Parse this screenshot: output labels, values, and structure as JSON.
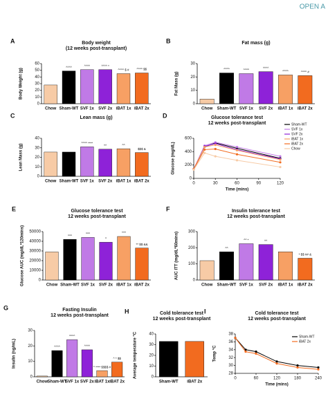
{
  "header": {
    "brand": "OPEN A"
  },
  "chart_data": [
    {
      "type": "bar",
      "label": "A",
      "title": "Body weight",
      "subtitle": "(12 weeks post-transplant)",
      "y_label": "Body Weight (g)",
      "categories": [
        "Chow",
        "Sham-WT",
        "SVF 1x",
        "SVF 2x",
        "iBAT 1x",
        "iBAT 2x"
      ],
      "values": [
        28,
        49,
        51,
        51,
        45,
        46
      ],
      "colors": [
        "#f7cba6",
        "#000000",
        "#c07ae6",
        "#8e22d8",
        "#f7a064",
        "#f26b1f"
      ],
      "annotations": [
        null,
        "^^^^",
        "^^^^",
        "^^^^ *",
        "^^^^ $ #",
        "^^^^ $$"
      ],
      "ylim": [
        0,
        60
      ],
      "yticks": [
        0,
        10,
        20,
        30,
        40,
        50,
        60
      ]
    },
    {
      "type": "bar",
      "label": "B",
      "title": "Fat mass (g)",
      "y_label": "Fat Mass (g)",
      "categories": [
        "Chow",
        "Sham-WT",
        "SVF 1x",
        "SVF 2x",
        "iBAT 1x",
        "iBAT 2x"
      ],
      "values": [
        3.5,
        23,
        22.5,
        24,
        21.5,
        21
      ],
      "colors": [
        "#f7cba6",
        "#000000",
        "#c07ae6",
        "#8e22d8",
        "#f7a064",
        "#f26b1f"
      ],
      "annotations": [
        null,
        "^^^^",
        "^^^^",
        "^^^^",
        "^^^^",
        "^^^^ #"
      ],
      "ylim": [
        0,
        30
      ],
      "yticks": [
        0,
        10,
        20,
        30
      ]
    },
    {
      "type": "bar",
      "label": "C",
      "title": "Lean mass (g)",
      "y_label": "Lean Mass (g)",
      "categories": [
        "Chow",
        "Sham-WT",
        "SVF 1x",
        "SVF 2x",
        "iBAT 1x",
        "iBAT 2x"
      ],
      "values": [
        25.5,
        25.5,
        31,
        28.5,
        29,
        25
      ],
      "colors": [
        "#f7cba6",
        "#000000",
        "#c07ae6",
        "#8e22d8",
        "#f7a064",
        "#f26b1f"
      ],
      "annotations": [
        null,
        null,
        "^^^^ ****",
        "^^",
        "^^",
        "$$$ &"
      ],
      "ylim": [
        0,
        40
      ],
      "yticks": [
        0,
        10,
        20,
        30,
        40
      ]
    },
    {
      "type": "line",
      "label": "D",
      "title": "Glucose tolerance test",
      "subtitle": "12 weeks post-transplant",
      "y_label": "Glucose (mg/dL)",
      "x_label": "Time (mins)",
      "x": [
        0,
        15,
        30,
        60,
        120
      ],
      "series": [
        {
          "name": "Sham-WT",
          "color": "#000000",
          "values": [
            140,
            470,
            530,
            450,
            300
          ]
        },
        {
          "name": "SVF 1x",
          "color": "#c07ae6",
          "values": [
            140,
            490,
            540,
            470,
            330
          ]
        },
        {
          "name": "SVF 2x",
          "color": "#8e22d8",
          "values": [
            140,
            480,
            520,
            430,
            290
          ]
        },
        {
          "name": "iBAT 1x",
          "color": "#f7a064",
          "values": [
            140,
            470,
            500,
            420,
            280
          ]
        },
        {
          "name": "iBAT 2x",
          "color": "#f26b1f",
          "values": [
            140,
            430,
            440,
            360,
            240
          ]
        },
        {
          "name": "Chow",
          "color": "#f7cba6",
          "values": [
            130,
            380,
            330,
            270,
            170
          ]
        }
      ],
      "xlim": [
        0,
        120
      ],
      "xticks": [
        0,
        30,
        60,
        90,
        120
      ],
      "ylim": [
        0,
        600
      ],
      "yticks": [
        0,
        200,
        400,
        600
      ]
    },
    {
      "type": "bar",
      "label": "E",
      "title": "Glucose tolerance test",
      "subtitle": "12 weeks post-transplant",
      "y_label": "Glucose AUC (mg/dL*120mins)",
      "categories": [
        "Chow",
        "Sham-WT",
        "SVF 1x",
        "SVF 2x",
        "iBAT 1x",
        "iBAT 2x"
      ],
      "values": [
        29000,
        42000,
        44000,
        39000,
        45000,
        33000
      ],
      "colors": [
        "#f7cba6",
        "#000000",
        "#c07ae6",
        "#8e22d8",
        "#f7a064",
        "#f26b1f"
      ],
      "annotations": [
        null,
        "^^^",
        "^^^",
        "^",
        "^^^",
        "** $$ &&"
      ],
      "ylim": [
        0,
        50000
      ],
      "yticks": [
        0,
        10000,
        20000,
        30000,
        40000,
        50000
      ]
    },
    {
      "type": "bar",
      "label": "F",
      "title": "Insulin tolerance test",
      "subtitle": "12 weeks post-transplant",
      "y_label": "AUC ITT (mg/dL*60mins)",
      "categories": [
        "Chow",
        "Sham-WT",
        "SVF 1x",
        "SVF 2x",
        "iBAT 1x",
        "iBAT 2x"
      ],
      "values": [
        120,
        175,
        225,
        220,
        175,
        135
      ],
      "colors": [
        "#f7cba6",
        "#000000",
        "#c07ae6",
        "#8e22d8",
        "#f7a064",
        "#f26b1f"
      ],
      "annotations": [
        null,
        "^^",
        "^^ *",
        "^^",
        null,
        "* $$ ## &"
      ],
      "ylim": [
        0,
        300
      ],
      "yticks": [
        0,
        100,
        200,
        300
      ]
    },
    {
      "type": "bar",
      "label": "G",
      "title": "Fasting Insulin",
      "subtitle": "12 weeks post-transplant",
      "y_label": "Insulin (ng/mL)",
      "categories": [
        "Chow",
        "Sham-WT",
        "SVF 1x",
        "SVF 2x",
        "iBAT 1x",
        "iBAT 2x"
      ],
      "values": [
        0.5,
        17,
        24,
        17.5,
        4,
        9.5
      ],
      "colors": [
        "#f7cba6",
        "#000000",
        "#c07ae6",
        "#8e22d8",
        "#f7a064",
        "#f26b1f"
      ],
      "annotations": [
        null,
        "^^^^",
        "^^^^",
        "^^^^",
        "^ **** $$$$ #",
        "^ * $$"
      ],
      "ylim": [
        0,
        30
      ],
      "yticks": [
        0,
        10,
        20,
        30
      ]
    },
    {
      "type": "bar",
      "label": "H",
      "title": "Cold tolerance test",
      "subtitle": "12 weeks post-transplant",
      "y_label": "Average temperature °C",
      "categories": [
        "Sham-WT",
        "iBAT 2x"
      ],
      "values": [
        33,
        33
      ],
      "colors": [
        "#000000",
        "#f26b1f"
      ],
      "ylim": [
        0,
        40
      ],
      "yticks": [
        0,
        10,
        20,
        30,
        40
      ]
    },
    {
      "type": "line",
      "label": "I",
      "title": "Cold tolerance test",
      "subtitle": "12 weeks post-transplant",
      "y_label": "Temp °C",
      "x_label": "Time (mins)",
      "x": [
        0,
        30,
        60,
        120,
        180,
        240
      ],
      "series": [
        {
          "name": "Sham-WT",
          "color": "#000000",
          "values": [
            37,
            34,
            33.5,
            31,
            30,
            29.5
          ]
        },
        {
          "name": "iBAT 2x",
          "color": "#f26b1f",
          "values": [
            37,
            33.5,
            33,
            30.5,
            29.5,
            29
          ]
        }
      ],
      "xlim": [
        0,
        240
      ],
      "xticks": [
        0,
        60,
        120,
        180,
        240
      ],
      "ylim": [
        28,
        38
      ],
      "yticks": [
        28,
        30,
        32,
        34,
        36,
        38
      ]
    }
  ]
}
